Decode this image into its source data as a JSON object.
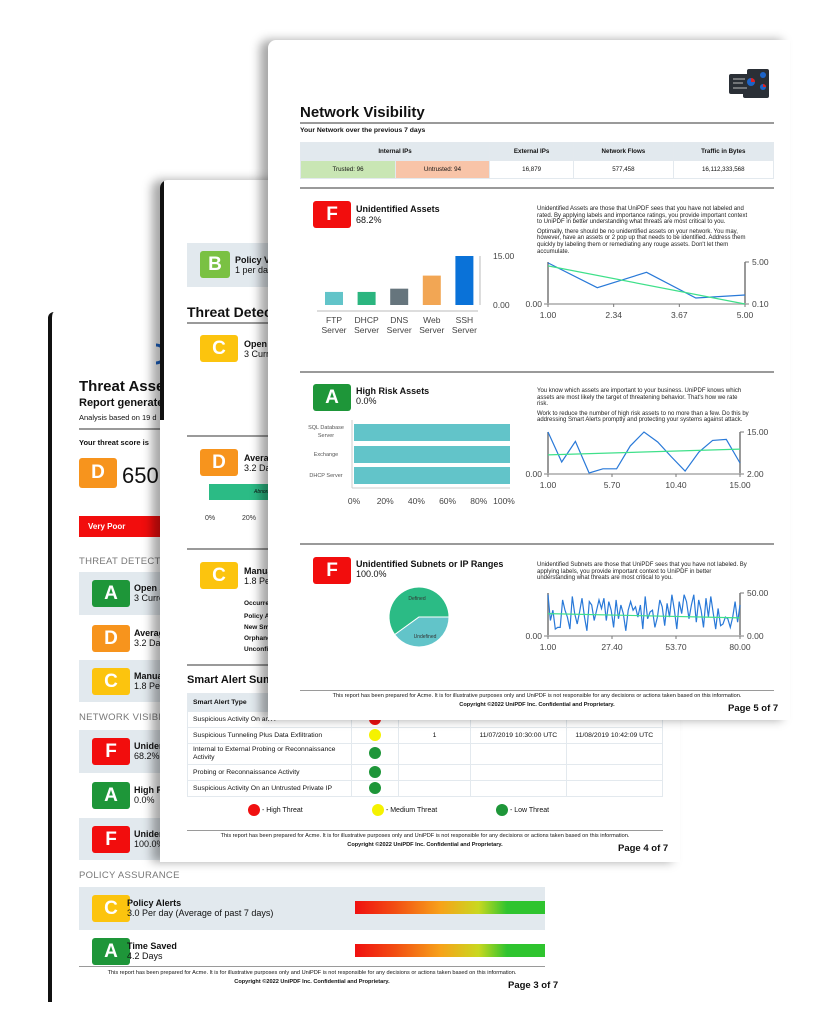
{
  "colors": {
    "grade_A": "#1e9639",
    "grade_B": "#7ac143",
    "grade_C": "#fcc40e",
    "grade_D": "#f7941d",
    "grade_F": "#f20d0d",
    "high": "#f01010",
    "medium": "#f5f200",
    "low": "#1e9639",
    "trusted": "#c9e6b4",
    "untrusted": "#f8c4a8",
    "series_blue": "#2979d8",
    "series_green": "#3fe08a"
  },
  "footer": {
    "disclaimer": "This report has been prepared for Acme. It is for illustrative purposes only and UniPDF is not responsible for any decisions or actions taken based on this information.",
    "copyright": "Copyright ©2022 UniPDF Inc. Confidential and Proprietary."
  },
  "page3": {
    "title": "Threat Assess",
    "subtitle": "Report generated",
    "analysis": "Analysis based on 19 d",
    "score_label": "Your threat score is",
    "score_grade": "D",
    "score": "650",
    "rating": "Very Poor",
    "threat_detection": {
      "heading": "THREAT DETECTIO",
      "items": [
        {
          "grade": "A",
          "label": "Open Sma",
          "value": "3 Currently"
        },
        {
          "grade": "D",
          "label": "Average T",
          "value": "3.2 Days,"
        },
        {
          "grade": "C",
          "label": "Manual Ef",
          "value": "1.8 Person"
        }
      ]
    },
    "network_visibility": {
      "heading": "NETWORK VISIBILI",
      "items": [
        {
          "grade": "F",
          "label": "Unidentifi",
          "value": "68.2%"
        },
        {
          "grade": "A",
          "label": "High Risk",
          "value": "0.0%"
        },
        {
          "grade": "F",
          "label": "Unidentifi",
          "value": "100.0%"
        }
      ]
    },
    "policy_assurance": {
      "heading": "POLICY ASSURANCE",
      "items": [
        {
          "grade": "C",
          "label": "Policy Alerts",
          "value": "3.0 Per day (Average of past 7 days)"
        },
        {
          "grade": "A",
          "label": "Time Saved",
          "value": "4.2 Days"
        }
      ]
    },
    "page_number": "Page 3 of 7"
  },
  "page4": {
    "policy": {
      "grade": "B",
      "label": "Policy Vi",
      "value": "1 per day"
    },
    "heading": "Threat Detect",
    "items": [
      {
        "grade": "C",
        "label": "Open S",
        "value": "3 Curre"
      },
      {
        "grade": "D",
        "label": "Averag",
        "value": "3.2 Day"
      },
      {
        "grade": "C",
        "label": "Manual",
        "value": "1.8 Pers"
      }
    ],
    "bar_label": "Abnormal b",
    "axis_ticks": [
      "0%",
      "20%"
    ],
    "occurrence_labels": [
      "Occurren",
      "Policy Al",
      "New Sma",
      "Orphane",
      "Unconfir"
    ],
    "summary_title": "Smart Alert Summ",
    "table": {
      "header": "Smart Alert Type",
      "rows": [
        {
          "type": "Suspicious Activity On an A",
          "threat": "high",
          "count": "",
          "first": "",
          "last": ""
        },
        {
          "type": "Suspicious Tunneling Plus Data Exfiltration",
          "threat": "medium",
          "count": "1",
          "first": "11/07/2019 10:30:00 UTC",
          "last": "11/08/2019 10:42:09 UTC"
        },
        {
          "type": "Internal to External Probing or Reconnaissance Activity",
          "threat": "low",
          "count": "",
          "first": "",
          "last": ""
        },
        {
          "type": "Probing or Reconnaissance Activity",
          "threat": "low",
          "count": "",
          "first": "",
          "last": ""
        },
        {
          "type": "Suspicious Activity On an Untrusted Private IP",
          "threat": "low",
          "count": "",
          "first": "",
          "last": ""
        }
      ]
    },
    "legend": [
      "- High Threat",
      "- Medium Threat",
      "- Low Threat"
    ],
    "page_number": "Page 4 of 7"
  },
  "page5": {
    "title": "Network Visibility",
    "subtitle": "Your Network over the previous 7 days",
    "icon": "report-dashboard-icon",
    "table": {
      "headers": [
        "Internal IPs",
        "External IPs",
        "Network Flows",
        "Traffic in Bytes"
      ],
      "trusted": "Trusted: 96",
      "untrusted": "Untrusted: 94",
      "external": "16,879",
      "flows": "577,458",
      "traffic": "16,112,333,568"
    },
    "sections": [
      {
        "grade": "F",
        "title": "Unidentified Assets",
        "value": "68.2%",
        "desc": [
          "Unidentified Assets are those that UniPDF sees that you have not labeled and rated. By applying labels and importance ratings, you provide important context to UniPDF in better understanding what threats are most critical to you.",
          "Optimally, there should be no unidentified assets on your network. You may, however, have an assets or 2 pop up that needs to be identified. Address them quickly by labeling them or remediating any rouge assets. Don't let them accumulate."
        ]
      },
      {
        "grade": "A",
        "title": "High Risk Assets",
        "value": "0.0%",
        "desc": [
          "You know which assets are important to your business. UniPDF knows which assets are most likely the target of threatening behavior. That's how we rate risk.",
          "Work to reduce the number of high risk assets to no more than a few. Do this by addressing Smart Alerts promptly and protecting your systems against attack."
        ]
      },
      {
        "grade": "F",
        "title": "Unidentified Subnets or IP Ranges",
        "value": "100.0%",
        "desc": [
          "Unidentified Subnets are those that UniPDF sees that you have not labeled. By applying labels, you provide important context to UniPDF in better understanding what threats are most critical to you."
        ]
      }
    ],
    "page_number": "Page 5 of 7"
  },
  "chart_data": [
    {
      "type": "bar",
      "categories": [
        [
          "FTP",
          "Server"
        ],
        [
          "DHCP",
          "Server"
        ],
        [
          "DNS",
          "Server"
        ],
        [
          "Web",
          "Server"
        ],
        [
          "SSH",
          "Server"
        ]
      ],
      "values": [
        4,
        4,
        5,
        9,
        15
      ],
      "colors": [
        "#62c4c9",
        "#2bb57f",
        "#66757d",
        "#f2a654",
        "#0a72d8"
      ],
      "ylim": [
        0,
        15
      ],
      "yticks": [
        "15.00",
        "0.00"
      ]
    },
    {
      "type": "line",
      "xlim": [
        1,
        5
      ],
      "xticks": [
        "1.00",
        "2.34",
        "3.67",
        "5.00"
      ],
      "left_ticks": [
        "0.00"
      ],
      "right_ylim": [
        0.1,
        5
      ],
      "right_ticks": [
        "5.00",
        "0.10"
      ],
      "series": [
        {
          "x": [
            1,
            2,
            3,
            4,
            5
          ],
          "y": [
            4.9,
            2.0,
            3.8,
            0.8,
            1.15
          ],
          "color": "#2979d8"
        },
        {
          "x": [
            1,
            5
          ],
          "y": [
            4.55,
            0.1
          ],
          "color": "#3fe08a"
        }
      ]
    },
    {
      "type": "bar",
      "orientation": "horizontal",
      "categories": [
        [
          "SQL Database",
          "Server"
        ],
        [
          "Exchange"
        ],
        [
          "DHCP Server"
        ]
      ],
      "values": [
        100,
        100,
        100
      ],
      "xticks": [
        "0%",
        "20%",
        "40%",
        "60%",
        "80%",
        "100%"
      ],
      "color": "#62c4c9"
    },
    {
      "type": "line",
      "xlim": [
        1,
        15
      ],
      "xticks": [
        "1.00",
        "5.70",
        "10.40",
        "15.00"
      ],
      "left_ticks": [
        "0.00"
      ],
      "right_ylim": [
        2,
        15
      ],
      "right_ticks": [
        "15.00",
        "2.00"
      ],
      "series": [
        {
          "x": [
            1,
            2,
            3,
            4,
            5,
            6,
            7,
            8,
            9,
            10,
            11,
            12,
            13,
            14,
            15
          ],
          "y": [
            15,
            5.7,
            12.1,
            2.3,
            3.6,
            3.6,
            10.7,
            15,
            11.9,
            7.3,
            2.9,
            8.8,
            12.4,
            12.7,
            5.4
          ],
          "color": "#2979d8"
        },
        {
          "x": [
            1,
            15
          ],
          "y": [
            7.9,
            9.7
          ],
          "color": "#3fe08a"
        }
      ]
    },
    {
      "type": "pie",
      "slices": [
        {
          "label": "Defined",
          "value": 60,
          "color": "#2bbb85"
        },
        {
          "label": "Undefined",
          "value": 40,
          "color": "#62c4c9"
        }
      ]
    },
    {
      "type": "line",
      "xlim": [
        1,
        80
      ],
      "xticks": [
        "1.00",
        "27.40",
        "53.70",
        "80.00"
      ],
      "left_ticks": [
        "0.00"
      ],
      "right_ylim": [
        0,
        50
      ],
      "right_ticks": [
        "50.00",
        "0.00"
      ],
      "series": [
        {
          "x_range": [
            1,
            80
          ],
          "y": [
            48,
            18,
            30,
            8,
            10,
            10,
            42,
            30,
            22,
            8,
            46,
            26,
            14,
            28,
            44,
            22,
            6,
            40,
            36,
            18,
            30,
            42,
            32,
            44,
            18,
            40,
            30,
            10,
            42,
            20,
            36,
            26,
            6,
            30,
            40,
            30,
            34,
            22,
            36,
            8,
            46,
            20,
            28,
            30,
            10,
            22,
            42,
            34,
            12,
            38,
            22,
            48,
            30,
            8,
            40,
            26,
            48,
            40,
            20,
            36,
            48,
            16,
            42,
            30,
            10,
            44,
            22,
            46,
            26,
            8,
            32,
            12,
            14,
            22,
            20,
            10,
            22,
            40,
            16,
            36
          ],
          "color": "#2979d8"
        },
        {
          "x": [
            1,
            80
          ],
          "y": [
            26,
            21
          ],
          "color": "#3fe08a"
        }
      ]
    }
  ]
}
